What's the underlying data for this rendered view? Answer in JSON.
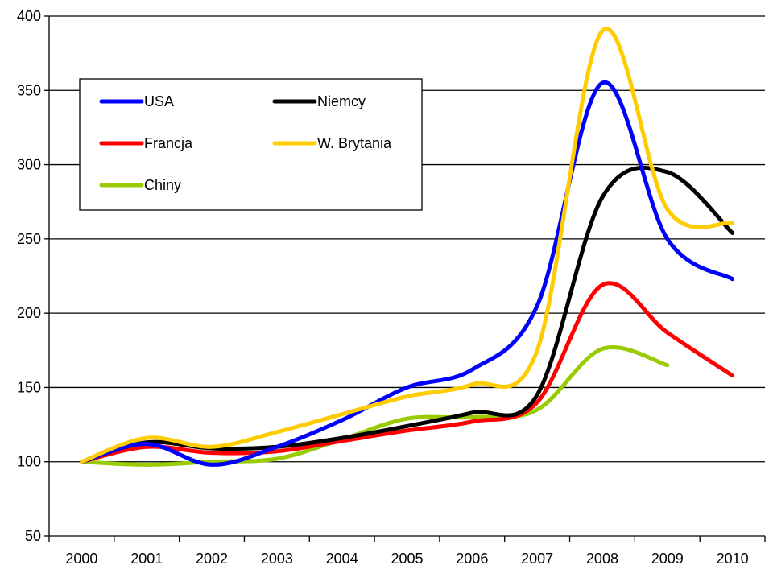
{
  "chart_data": {
    "type": "line",
    "title": "",
    "xlabel": "",
    "ylabel": "",
    "categories": [
      "2000",
      "2001",
      "2002",
      "2003",
      "2004",
      "2005",
      "2006",
      "2007",
      "2008",
      "2009",
      "2010"
    ],
    "ylim": [
      50,
      400
    ],
    "yticks": [
      50,
      100,
      150,
      200,
      250,
      300,
      350,
      400
    ],
    "grid": "horizontal",
    "legend_position": "top-left",
    "series": [
      {
        "name": "USA",
        "color": "#0000ff",
        "values": [
          100,
          112,
          98,
          110,
          128,
          150,
          162,
          205,
          355,
          250,
          223
        ]
      },
      {
        "name": "Niemcy",
        "color": "#000000",
        "values": [
          100,
          113,
          109,
          110,
          116,
          124,
          133,
          145,
          278,
          295,
          254
        ]
      },
      {
        "name": "Francja",
        "color": "#ff0000",
        "values": [
          100,
          110,
          106,
          107,
          114,
          121,
          127,
          140,
          219,
          187,
          158
        ]
      },
      {
        "name": "W. Brytania",
        "color": "#ffcc00",
        "values": [
          100,
          116,
          110,
          120,
          132,
          144,
          152,
          175,
          390,
          270,
          261
        ]
      },
      {
        "name": "Chiny",
        "color": "#99cc00",
        "values": [
          100,
          98,
          100,
          102,
          115,
          129,
          130,
          135,
          176,
          165,
          null
        ]
      }
    ]
  }
}
